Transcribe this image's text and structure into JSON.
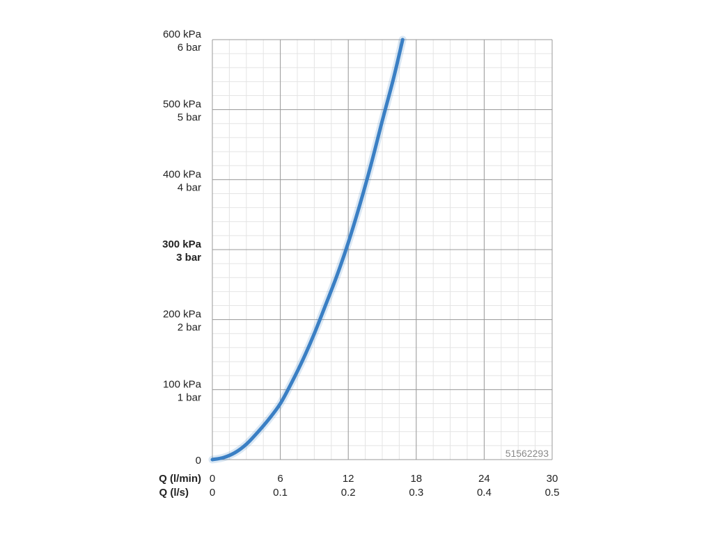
{
  "chart_data": {
    "type": "line",
    "title": "",
    "xlabel_primary": "Q (l/min)",
    "xlabel_secondary": "Q (l/s)",
    "xlim": [
      0,
      30
    ],
    "ylim": [
      0,
      600
    ],
    "grid": true,
    "x_ticks_primary": [
      "0",
      "6",
      "12",
      "18",
      "24",
      "30"
    ],
    "x_ticks_secondary": [
      "0",
      "0.1",
      "0.2",
      "0.3",
      "0.4",
      "0.5"
    ],
    "x_tick_values": [
      0,
      6,
      12,
      18,
      24,
      30
    ],
    "y_ticks": [
      {
        "value": 600,
        "line1": "600 kPa",
        "line2": "6 bar",
        "bold": false
      },
      {
        "value": 500,
        "line1": "500 kPa",
        "line2": "5 bar",
        "bold": false
      },
      {
        "value": 400,
        "line1": "400 kPa",
        "line2": "4 bar",
        "bold": false
      },
      {
        "value": 300,
        "line1": "300 kPa",
        "line2": "3 bar",
        "bold": true
      },
      {
        "value": 200,
        "line1": "200 kPa",
        "line2": "2 bar",
        "bold": false
      },
      {
        "value": 100,
        "line1": "100 kPa",
        "line2": "1 bar",
        "bold": false
      },
      {
        "value": 0,
        "line1": "0",
        "line2": "",
        "bold": false
      }
    ],
    "series": [
      {
        "color": "#3a7fc4",
        "points": [
          {
            "x": 0,
            "y": 0
          },
          {
            "x": 1,
            "y": 3
          },
          {
            "x": 2,
            "y": 10
          },
          {
            "x": 3,
            "y": 22
          },
          {
            "x": 4,
            "y": 39
          },
          {
            "x": 5,
            "y": 58
          },
          {
            "x": 6,
            "y": 80
          },
          {
            "x": 7,
            "y": 110
          },
          {
            "x": 8,
            "y": 143
          },
          {
            "x": 9,
            "y": 180
          },
          {
            "x": 10,
            "y": 221
          },
          {
            "x": 11,
            "y": 263
          },
          {
            "x": 12,
            "y": 310
          },
          {
            "x": 13,
            "y": 363
          },
          {
            "x": 14,
            "y": 421
          },
          {
            "x": 15,
            "y": 484
          },
          {
            "x": 16,
            "y": 545
          },
          {
            "x": 16.8,
            "y": 600
          }
        ]
      }
    ],
    "annotation": "51562293"
  }
}
